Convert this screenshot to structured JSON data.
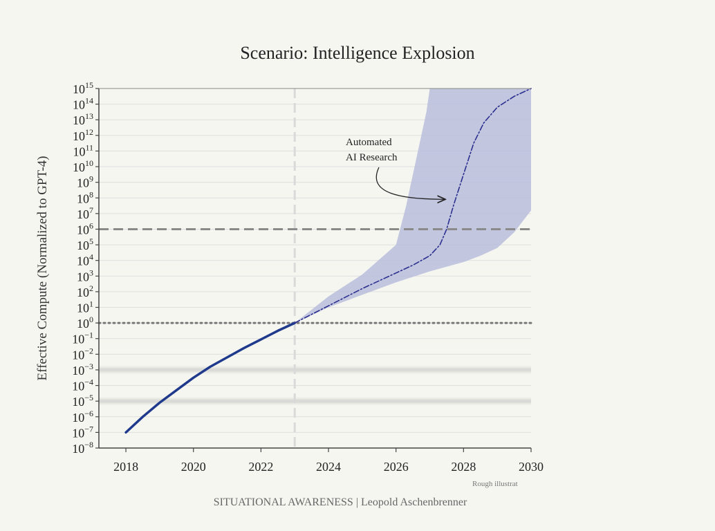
{
  "chart_data": {
    "type": "line",
    "title": "Scenario: Intelligence Explosion",
    "ylabel": "Effective Compute (Normalized to GPT-4)",
    "yscale": "log10",
    "ylim_exp": [
      -8,
      15
    ],
    "y_ticks": [
      "-8",
      "-7",
      "-6",
      "-5",
      "-4",
      "-3",
      "-2",
      "-1",
      "0",
      "1",
      "2",
      "3",
      "4",
      "5",
      "6",
      "7",
      "8",
      "9",
      "10",
      "11",
      "12",
      "13",
      "14",
      "15"
    ],
    "y_tick_base": "10",
    "x_ticks": [
      "2018",
      "2020",
      "2022",
      "2024",
      "2026",
      "2028",
      "2030"
    ],
    "xlim": [
      2017.2,
      2030.0
    ],
    "grid": true,
    "reference_lines": [
      {
        "axis": "x",
        "value": 2023.0,
        "style": "dashed",
        "color": "#d9d9d9"
      },
      {
        "axis": "y",
        "value_exp": 6,
        "style": "dashed",
        "color": "#8a8a8a"
      },
      {
        "axis": "y",
        "value_exp": 0,
        "style": "dotted",
        "color": "#777777"
      }
    ],
    "shaded_bands_exp": [
      [
        -3.3,
        -2.7
      ],
      [
        -5.3,
        -4.7
      ]
    ],
    "series": [
      {
        "style": "solid",
        "color": "#1f3a8c",
        "x": [
          2018.0,
          2018.5,
          2019.0,
          2019.5,
          2020.0,
          2020.5,
          2021.0,
          2021.5,
          2022.0,
          2022.5,
          2023.0
        ],
        "y_exp": [
          -7.0,
          -6.0,
          -5.1,
          -4.3,
          -3.5,
          -2.8,
          -2.2,
          -1.6,
          -1.05,
          -0.5,
          0.0
        ]
      },
      {
        "style": "dashdot",
        "color": "#2b2f8f",
        "x": [
          2023.0,
          2024.0,
          2025.0,
          2026.0,
          2026.5,
          2027.0,
          2027.3,
          2027.5,
          2027.7,
          2028.0,
          2028.3,
          2028.6,
          2029.0,
          2029.5,
          2030.0
        ],
        "y_exp": [
          0.0,
          1.1,
          2.2,
          3.2,
          3.7,
          4.3,
          5.0,
          6.0,
          7.5,
          9.5,
          11.5,
          12.8,
          13.8,
          14.5,
          15.0
        ]
      }
    ],
    "uncertainty_band": {
      "color": "#b9bdda",
      "upper": {
        "x": [
          2023.0,
          2024.0,
          2025.0,
          2026.0,
          2026.3,
          2026.6,
          2026.9,
          2027.0,
          2030.0
        ],
        "y_exp": [
          0.0,
          1.7,
          3.1,
          5.0,
          7.5,
          10.5,
          13.5,
          15.0,
          15.0
        ]
      },
      "lower": {
        "x": [
          2023.0,
          2024.0,
          2025.0,
          2026.0,
          2027.0,
          2028.0,
          2028.5,
          2029.0,
          2029.5,
          2030.0
        ],
        "y_exp": [
          0.0,
          1.0,
          1.8,
          2.6,
          3.3,
          3.9,
          4.3,
          4.8,
          5.8,
          7.2
        ]
      }
    },
    "annotations": [
      {
        "text_lines": [
          "Automated",
          "AI Research"
        ],
        "arrow_to_x": 2027.6,
        "arrow_to_y_exp": 8
      }
    ]
  },
  "footnote": "Rough illustrat",
  "footer": "SITUATIONAL AWARENESS | Leopold Aschenbrenner"
}
